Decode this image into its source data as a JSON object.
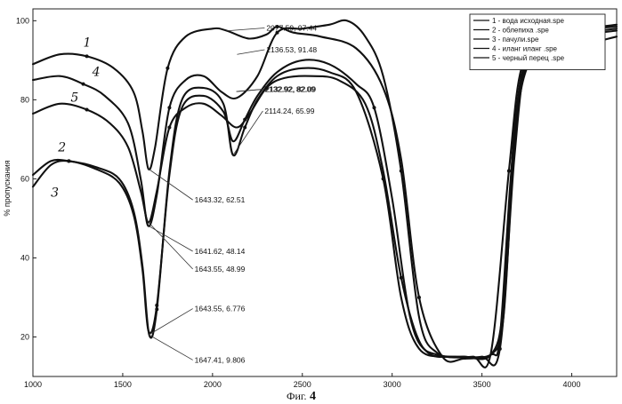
{
  "chart_data": {
    "type": "line",
    "title": "",
    "xlabel": "",
    "ylabel": "% пропускания",
    "xlim": [
      1000,
      4250
    ],
    "ylim": [
      10,
      103
    ],
    "xticks": [
      1000,
      1500,
      2000,
      2500,
      3000,
      3500,
      4000
    ],
    "yticks": [
      20,
      40,
      60,
      80,
      100
    ],
    "grid": false,
    "legend_position": "top-right",
    "series": [
      {
        "name": "1 - вода исходная.spe",
        "handwritten_label": "1",
        "points": [
          [
            1000,
            89
          ],
          [
            1150,
            91.5
          ],
          [
            1300,
            91
          ],
          [
            1450,
            88
          ],
          [
            1560,
            82
          ],
          [
            1610,
            72
          ],
          [
            1643.3,
            62.5
          ],
          [
            1680,
            68
          ],
          [
            1750,
            88
          ],
          [
            1850,
            96
          ],
          [
            2000,
            98
          ],
          [
            2077.6,
            97.5
          ],
          [
            2200,
            95.5
          ],
          [
            2300,
            96.5
          ],
          [
            2360,
            98.5
          ],
          [
            2450,
            97
          ],
          [
            2600,
            96
          ],
          [
            2800,
            93
          ],
          [
            2950,
            83
          ],
          [
            3050,
            65
          ],
          [
            3150,
            30
          ],
          [
            3280,
            15
          ],
          [
            3400,
            14.5
          ],
          [
            3550,
            15.5
          ],
          [
            3600,
            20
          ],
          [
            3660,
            60
          ],
          [
            3720,
            86
          ],
          [
            3800,
            90
          ],
          [
            4000,
            93
          ],
          [
            4250,
            96
          ]
        ]
      },
      {
        "name": "2 - облепиха .spe",
        "handwritten_label": "2",
        "points": [
          [
            1000,
            61
          ],
          [
            1100,
            64.5
          ],
          [
            1200,
            64.5
          ],
          [
            1350,
            63
          ],
          [
            1480,
            60
          ],
          [
            1560,
            52
          ],
          [
            1610,
            38
          ],
          [
            1647.4,
            20.5
          ],
          [
            1690,
            27
          ],
          [
            1760,
            62
          ],
          [
            1830,
            80
          ],
          [
            1950,
            83
          ],
          [
            2060,
            79
          ],
          [
            2114.2,
            66
          ],
          [
            2180,
            73
          ],
          [
            2250,
            80
          ],
          [
            2360,
            86
          ],
          [
            2500,
            88
          ],
          [
            2650,
            87
          ],
          [
            2800,
            82
          ],
          [
            2950,
            60
          ],
          [
            3050,
            30
          ],
          [
            3150,
            17
          ],
          [
            3300,
            15
          ],
          [
            3450,
            15
          ],
          [
            3550,
            16
          ],
          [
            3650,
            62
          ],
          [
            3720,
            88
          ],
          [
            3850,
            96
          ],
          [
            4000,
            97.5
          ],
          [
            4250,
            99
          ]
        ]
      },
      {
        "name": "3 - пачули.spe",
        "handwritten_label": "3",
        "points": [
          [
            1000,
            58
          ],
          [
            1100,
            63.5
          ],
          [
            1200,
            64.5
          ],
          [
            1350,
            62.5
          ],
          [
            1480,
            59
          ],
          [
            1560,
            51
          ],
          [
            1610,
            37
          ],
          [
            1643.6,
            21.5
          ],
          [
            1690,
            28
          ],
          [
            1760,
            61
          ],
          [
            1830,
            78
          ],
          [
            1950,
            81
          ],
          [
            2060,
            77
          ],
          [
            2114.2,
            69.5
          ],
          [
            2180,
            75
          ],
          [
            2250,
            81
          ],
          [
            2360,
            87
          ],
          [
            2500,
            90
          ],
          [
            2650,
            89
          ],
          [
            2800,
            84
          ],
          [
            2900,
            78
          ],
          [
            3000,
            55
          ],
          [
            3100,
            25
          ],
          [
            3200,
            16
          ],
          [
            3350,
            15
          ],
          [
            3500,
            15
          ],
          [
            3600,
            17
          ],
          [
            3680,
            65
          ],
          [
            3750,
            90
          ],
          [
            3900,
            97
          ],
          [
            4100,
            98
          ],
          [
            4250,
            98.5
          ]
        ]
      },
      {
        "name": "4 - иланг иланг .spe",
        "handwritten_label": "4",
        "points": [
          [
            1000,
            85
          ],
          [
            1150,
            86
          ],
          [
            1280,
            84
          ],
          [
            1400,
            81
          ],
          [
            1530,
            74
          ],
          [
            1600,
            60
          ],
          [
            1641.6,
            48.1
          ],
          [
            1690,
            56
          ],
          [
            1760,
            78
          ],
          [
            1850,
            85
          ],
          [
            1950,
            86
          ],
          [
            2050,
            82
          ],
          [
            2136.5,
            80.5
          ],
          [
            2250,
            86
          ],
          [
            2360,
            97
          ],
          [
            2500,
            98
          ],
          [
            2650,
            99
          ],
          [
            2750,
            100
          ],
          [
            2850,
            96
          ],
          [
            2950,
            86
          ],
          [
            3050,
            62
          ],
          [
            3150,
            25
          ],
          [
            3250,
            16
          ],
          [
            3400,
            15
          ],
          [
            3550,
            15.5
          ],
          [
            3620,
            25
          ],
          [
            3680,
            68
          ],
          [
            3750,
            88
          ],
          [
            3900,
            94
          ],
          [
            4100,
            97
          ],
          [
            4250,
            98
          ]
        ]
      },
      {
        "name": "5 - черный перец .spe",
        "handwritten_label": "5",
        "points": [
          [
            1000,
            76.5
          ],
          [
            1150,
            79
          ],
          [
            1300,
            77.5
          ],
          [
            1430,
            74
          ],
          [
            1530,
            68
          ],
          [
            1600,
            57
          ],
          [
            1643.6,
            49
          ],
          [
            1690,
            57
          ],
          [
            1760,
            73
          ],
          [
            1850,
            78
          ],
          [
            1950,
            79
          ],
          [
            2050,
            76
          ],
          [
            2133,
            73
          ],
          [
            2200,
            76
          ],
          [
            2300,
            83
          ],
          [
            2400,
            85.5
          ],
          [
            2550,
            86
          ],
          [
            2700,
            85
          ],
          [
            2850,
            79
          ],
          [
            2950,
            62
          ],
          [
            3050,
            35
          ],
          [
            3150,
            19
          ],
          [
            3250,
            15.5
          ],
          [
            3400,
            15
          ],
          [
            3550,
            15.5
          ],
          [
            3620,
            28
          ],
          [
            3680,
            72
          ],
          [
            3750,
            89
          ],
          [
            3900,
            94
          ],
          [
            4100,
            96.5
          ],
          [
            4250,
            97.5
          ]
        ]
      }
    ],
    "annotations": [
      {
        "text": "2077.59, 97.44",
        "point": [
          2077.59,
          97.44
        ]
      },
      {
        "text": "2136.53, 91.48",
        "point": [
          2136.53,
          91.48
        ]
      },
      {
        "text": "2132.92, 82.09",
        "point": [
          2132.92,
          82.09
        ]
      },
      {
        "text": "2132.92, 82.09",
        "point": [
          2132.92,
          82.09
        ]
      },
      {
        "text": "2114.24, 65.99",
        "point": [
          2114.24,
          65.99
        ]
      },
      {
        "text": "1643.32, 62.51",
        "point": [
          1643.32,
          62.51
        ]
      },
      {
        "text": "1641.62, 48.14",
        "point": [
          1641.62,
          48.14
        ]
      },
      {
        "text": "1643.55, 48.99",
        "point": [
          1643.55,
          48.99
        ]
      },
      {
        "text": "1643.55, 6.776",
        "point": [
          1643.55,
          6.776
        ]
      },
      {
        "text": "1647.41, 9.806",
        "point": [
          1647.41,
          9.806
        ]
      }
    ]
  },
  "caption": {
    "prefix": "Фиг.",
    "number": "4"
  }
}
